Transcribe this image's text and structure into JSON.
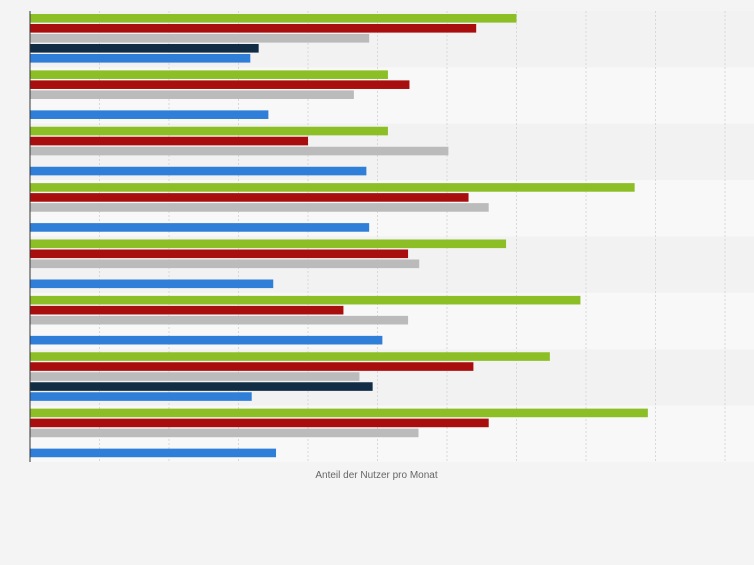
{
  "chart_data": {
    "type": "bar",
    "orientation": "horizontal",
    "title": "",
    "xlabel": "Anteil der Nutzer pro Monat",
    "ylabel": "",
    "xlim": [
      0,
      100
    ],
    "grid": true,
    "legend": "none",
    "categories": [
      "",
      "",
      "",
      "",
      "",
      "",
      "",
      ""
    ],
    "series": [
      {
        "color": "#8cbf26",
        "values": [
          70,
          51.5,
          51.5,
          87,
          68.5,
          79.2,
          74.8,
          88.9
        ]
      },
      {
        "color": "#a90e0e",
        "values": [
          64.2,
          54.6,
          40,
          63.1,
          54.4,
          45.1,
          63.8,
          66
        ]
      },
      {
        "color": "#bbbbbb",
        "values": [
          48.8,
          46.6,
          60.2,
          66,
          56,
          54.4,
          47.4,
          55.9
        ]
      },
      {
        "color": "#112c45",
        "values": [
          32.9,
          null,
          null,
          null,
          null,
          null,
          49.3,
          null
        ]
      },
      {
        "color": "#2f7ed8",
        "values": [
          31.7,
          34.3,
          48.4,
          48.8,
          35,
          50.7,
          31.9,
          35.4
        ]
      }
    ]
  }
}
